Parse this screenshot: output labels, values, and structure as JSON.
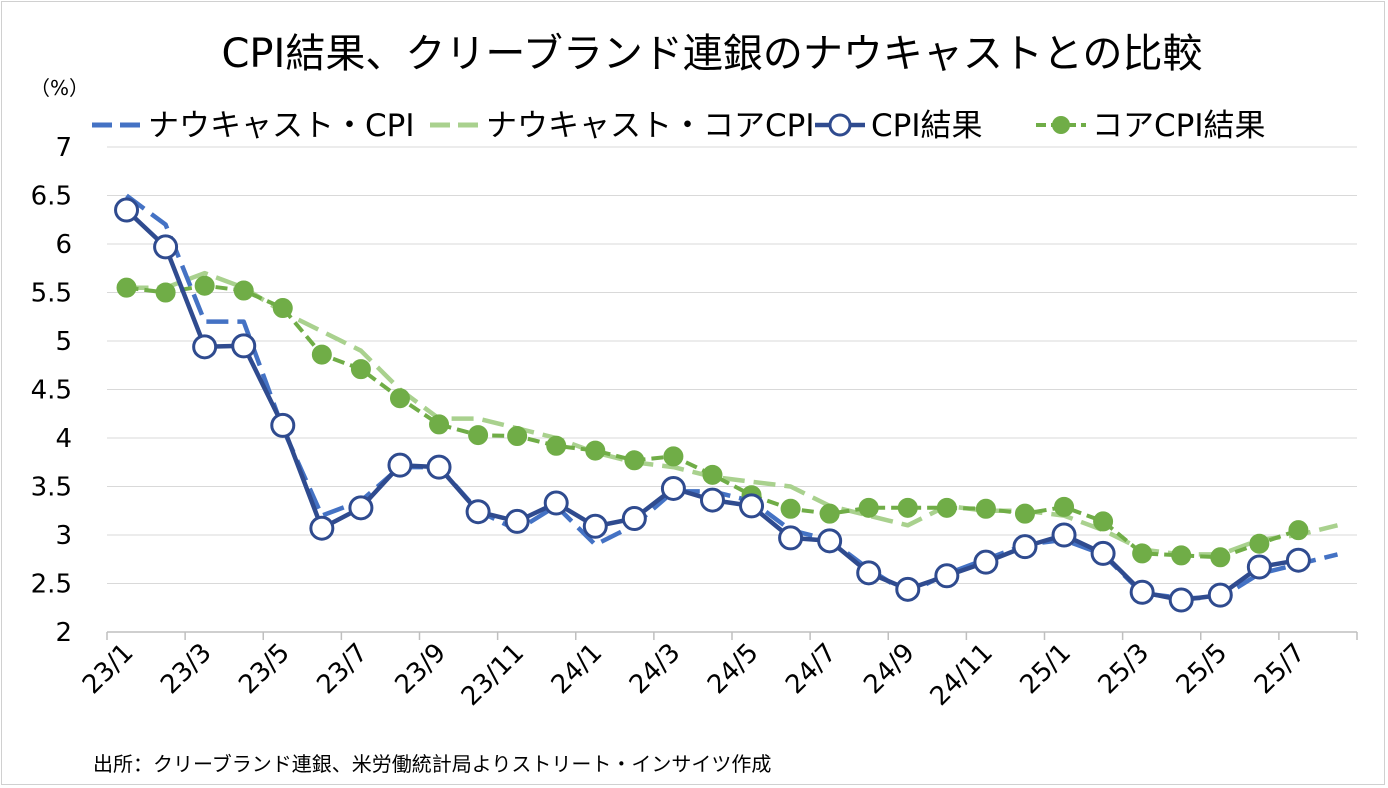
{
  "chart_data": {
    "type": "line",
    "title": "CPI結果、クリーブランド連銀のナウキャストとの比較",
    "ylabel": "（%）",
    "ylim": [
      2,
      7
    ],
    "yticks": [
      "2",
      "2.5",
      "3",
      "3.5",
      "4",
      "4.5",
      "5",
      "5.5",
      "6",
      "6.5",
      "7"
    ],
    "months": [
      "23/1",
      "23/2",
      "23/3",
      "23/4",
      "23/5",
      "23/6",
      "23/7",
      "23/8",
      "23/9",
      "23/10",
      "23/11",
      "23/12",
      "24/1",
      "24/2",
      "24/3",
      "24/4",
      "24/5",
      "24/6",
      "24/7",
      "24/8",
      "24/9",
      "24/10",
      "24/11",
      "24/12",
      "25/1",
      "25/2",
      "25/3",
      "25/4",
      "25/5",
      "25/6",
      "25/7",
      "25/8"
    ],
    "xtick_labels": [
      "23/1",
      "23/3",
      "23/5",
      "23/7",
      "23/9",
      "23/11",
      "24/1",
      "24/3",
      "24/5",
      "24/7",
      "24/9",
      "24/11",
      "25/1",
      "25/3",
      "25/5",
      "25/7"
    ],
    "grid": true,
    "legend_position": "top",
    "series": [
      {
        "name": "ナウキャスト・CPI",
        "style": "dashed",
        "color": "#4472c4",
        "values": [
          6.5,
          6.2,
          5.2,
          5.2,
          4.1,
          3.2,
          3.35,
          3.7,
          3.7,
          3.25,
          3.05,
          3.3,
          2.9,
          3.1,
          3.45,
          3.45,
          3.35,
          3.05,
          2.95,
          2.65,
          2.4,
          2.6,
          2.75,
          2.9,
          2.95,
          2.8,
          2.4,
          2.35,
          2.35,
          2.6,
          2.7,
          2.8
        ]
      },
      {
        "name": "ナウキャスト・コアCPI",
        "style": "dashed",
        "color": "#a9d18e",
        "values": [
          5.55,
          5.55,
          5.7,
          5.55,
          5.3,
          5.1,
          4.9,
          4.5,
          4.2,
          4.2,
          4.1,
          4.0,
          3.85,
          3.75,
          3.7,
          3.6,
          3.55,
          3.5,
          3.3,
          3.2,
          3.1,
          3.3,
          3.25,
          3.25,
          3.2,
          3.05,
          2.85,
          2.8,
          2.8,
          2.95,
          3.0,
          3.1
        ]
      },
      {
        "name": "CPI結果",
        "style": "solid-marker-open",
        "color": "#2f4b8f",
        "values": [
          6.35,
          5.97,
          4.94,
          4.95,
          4.13,
          3.07,
          3.28,
          3.72,
          3.7,
          3.24,
          3.14,
          3.33,
          3.09,
          3.17,
          3.48,
          3.36,
          3.3,
          2.97,
          2.94,
          2.61,
          2.44,
          2.58,
          2.72,
          2.88,
          3.0,
          2.81,
          2.41,
          2.33,
          2.38,
          2.67,
          2.74
        ]
      },
      {
        "name": "コアCPI結果",
        "style": "dashed-marker-filled",
        "color": "#70ad47",
        "values": [
          5.55,
          5.5,
          5.57,
          5.52,
          5.34,
          4.86,
          4.71,
          4.41,
          4.14,
          4.03,
          4.02,
          3.92,
          3.87,
          3.77,
          3.81,
          3.62,
          3.41,
          3.27,
          3.22,
          3.28,
          3.28,
          3.28,
          3.27,
          3.22,
          3.29,
          3.14,
          2.81,
          2.79,
          2.77,
          2.91,
          3.05
        ]
      }
    ]
  },
  "source_note": "出所：クリーブランド連銀、米労働統計局よりストリート・インサイツ作成"
}
